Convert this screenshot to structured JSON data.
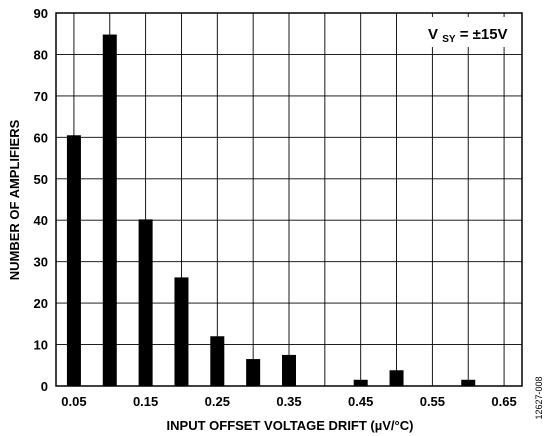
{
  "chart_data": {
    "type": "bar",
    "x": [
      0.05,
      0.1,
      0.15,
      0.2,
      0.25,
      0.3,
      0.35,
      0.4,
      0.45,
      0.5,
      0.55,
      0.6,
      0.65
    ],
    "values": [
      60.5,
      84.8,
      40.2,
      26.2,
      12.0,
      6.5,
      7.5,
      0,
      1.5,
      3.8,
      0,
      1.5,
      0
    ],
    "xlabel": "INPUT OFFSET VOLTAGE DRIFT (µV/°C)",
    "ylabel": "NUMBER OF AMPLIFIERS",
    "xlim": [
      0.025,
      0.675
    ],
    "ylim": [
      0,
      90
    ],
    "xticks": [
      "0.05",
      "0.15",
      "0.25",
      "0.35",
      "0.45",
      "0.55",
      "0.65"
    ],
    "yticks": [
      "0",
      "10",
      "20",
      "30",
      "40",
      "50",
      "60",
      "70",
      "80",
      "90"
    ],
    "grid": true,
    "bar_color": "#000000",
    "annotation": {
      "base": "V",
      "subscript": "SY",
      "text": " = ±15V"
    },
    "figure_id": "12627-008"
  }
}
